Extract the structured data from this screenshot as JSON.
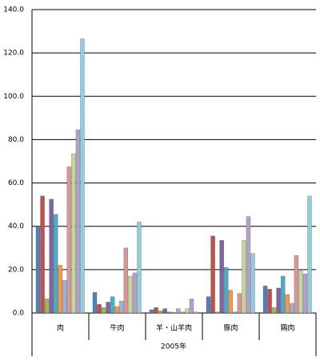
{
  "chart_data": {
    "type": "bar",
    "categories": [
      "肉",
      "牛肉",
      "羊・山羊肉",
      "豚肉",
      "鶏肉"
    ],
    "xlabel": "2005年",
    "ylim": [
      0,
      140
    ],
    "yticks": [
      {
        "value": 0,
        "label": "0.0"
      },
      {
        "value": 20,
        "label": "20.0"
      },
      {
        "value": 40,
        "label": "40.0"
      },
      {
        "value": 60,
        "label": "60.0"
      },
      {
        "value": 80,
        "label": "80.0"
      },
      {
        "value": 100,
        "label": "100.0"
      },
      {
        "value": 120,
        "label": "120.0"
      },
      {
        "value": 140,
        "label": "140.0"
      }
    ],
    "grid": true,
    "series": [
      {
        "color": "#4F81BD",
        "values": [
          40,
          9.5,
          1.5,
          7.5,
          12.5
        ]
      },
      {
        "color": "#C0504D",
        "values": [
          54,
          4,
          2.5,
          35.5,
          11
        ]
      },
      {
        "color": "#9BBB59",
        "values": [
          6.5,
          2.5,
          1,
          0.5,
          2.5
        ]
      },
      {
        "color": "#8064A2",
        "values": [
          52.5,
          5,
          2,
          33.5,
          11.5
        ]
      },
      {
        "color": "#4BACC6",
        "values": [
          45.5,
          7.5,
          0.5,
          21,
          17
        ]
      },
      {
        "color": "#F79646",
        "values": [
          22,
          3,
          0.3,
          10.5,
          8.5
        ]
      },
      {
        "color": "#95B3D7",
        "values": [
          15,
          5.5,
          2,
          0.5,
          4.5
        ]
      },
      {
        "color": "#D99694",
        "values": [
          67.5,
          30,
          0.5,
          9,
          26.5
        ]
      },
      {
        "color": "#C3D69B",
        "values": [
          73.5,
          17,
          2,
          33.5,
          19.5
        ]
      },
      {
        "color": "#B3A2C7",
        "values": [
          84.5,
          18.5,
          6.5,
          44.5,
          18
        ]
      },
      {
        "color": "#93CDDD",
        "values": [
          126.5,
          42,
          0.5,
          27.5,
          54
        ]
      }
    ]
  }
}
